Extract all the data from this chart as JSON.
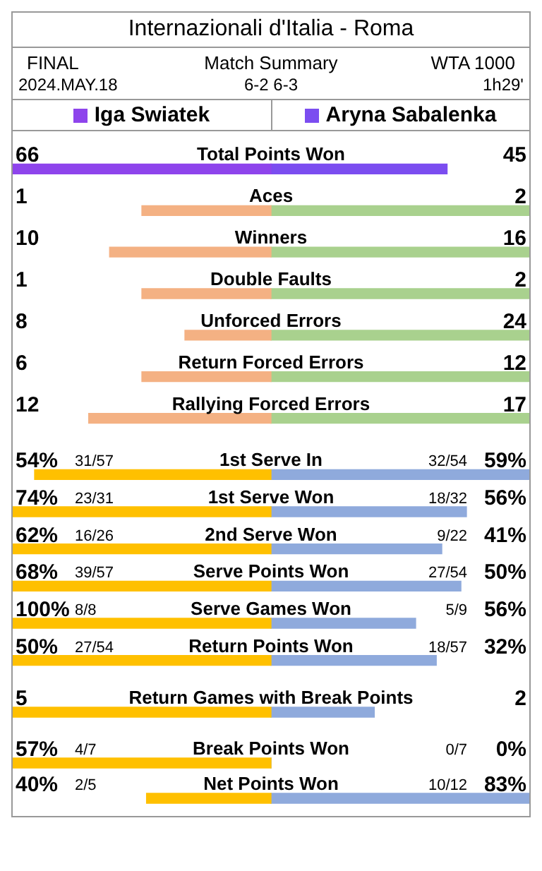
{
  "chart_data": [
    {
      "type": "other",
      "title": "Internazionali d'Italia - Roma",
      "annotations": [
        "FINAL",
        "Match Summary",
        "WTA 1000",
        "2024.MAY.18",
        "6-2 6-3",
        "1h29'"
      ],
      "categories": [
        "Total Points Won",
        "Aces",
        "Winners",
        "Double Faults",
        "Unforced Errors",
        "Return Forced Errors",
        "Rallying Forced Errors"
      ],
      "series": [
        {
          "name": "Iga Swiatek",
          "values": [
            66,
            1,
            10,
            1,
            8,
            6,
            12
          ],
          "value_labels": [
            "66",
            "1",
            "10",
            "1",
            "8",
            "6",
            "12"
          ],
          "colors": [
            "#8e44ec",
            "#f4b183",
            "#f4b183",
            "#f4b183",
            "#f4b183",
            "#f4b183",
            "#f4b183"
          ]
        },
        {
          "name": "Aryna Sabalenka",
          "values": [
            45,
            2,
            16,
            2,
            24,
            12,
            17
          ],
          "value_labels": [
            "45",
            "2",
            "16",
            "2",
            "24",
            "12",
            "17"
          ],
          "colors": [
            "#7b4df0",
            "#a9d18e",
            "#a9d18e",
            "#a9d18e",
            "#a9d18e",
            "#a9d18e",
            "#a9d18e"
          ]
        }
      ]
    },
    {
      "type": "other",
      "annotations": [
        "31/57",
        "32/54",
        "23/31",
        "18/32",
        "16/26",
        "9/22",
        "39/57",
        "27/54",
        "8/8",
        "5/9",
        "27/54",
        "18/57"
      ],
      "categories": [
        "1st Serve In",
        "1st Serve Won",
        "2nd Serve Won",
        "Serve Points Won",
        "Serve Games Won",
        "Return Points Won"
      ],
      "series": [
        {
          "values": [
            54,
            74,
            62,
            68,
            100,
            50
          ],
          "value_labels": [
            "54%",
            "74%",
            "62%",
            "68%",
            "100%",
            "50%"
          ],
          "colors": [
            "#ffc000",
            "#ffc000",
            "#ffc000",
            "#ffc000",
            "#ffc000",
            "#ffc000"
          ]
        },
        {
          "values": [
            59,
            56,
            41,
            50,
            56,
            32
          ],
          "value_labels": [
            "59%",
            "56%",
            "41%",
            "50%",
            "56%",
            "32%"
          ],
          "colors": [
            "#8faadc",
            "#8faadc",
            "#8faadc",
            "#8faadc",
            "#8faadc",
            "#8faadc"
          ]
        }
      ]
    },
    {
      "type": "other",
      "categories": [
        "Return Games with Break Points"
      ],
      "series": [
        {
          "values": [
            5
          ],
          "value_labels": [
            "5"
          ],
          "colors": [
            "#ffc000"
          ]
        },
        {
          "values": [
            2
          ],
          "value_labels": [
            "2"
          ],
          "colors": [
            "#8faadc"
          ]
        }
      ]
    },
    {
      "type": "other",
      "annotations": [
        "4/7",
        "0/7",
        "2/5",
        "10/12"
      ],
      "categories": [
        "Break Points Won",
        "Net Points Won"
      ],
      "series": [
        {
          "values": [
            57,
            40
          ],
          "value_labels": [
            "57%",
            "40%"
          ],
          "colors": [
            "#ffc000",
            "#ffc000"
          ]
        },
        {
          "values": [
            0,
            83
          ],
          "value_labels": [
            "0%",
            "83%"
          ],
          "colors": [
            "#8faadc",
            "#8faadc"
          ]
        }
      ]
    }
  ]
}
